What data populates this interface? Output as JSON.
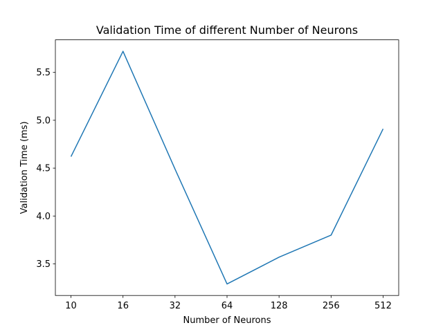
{
  "chart_data": {
    "type": "line",
    "title": "Validation Time of different Number of Neurons",
    "xlabel": "Number of Neurons",
    "ylabel": "Validation Time (ms)",
    "categories": [
      "10",
      "16",
      "32",
      "64",
      "128",
      "256",
      "512"
    ],
    "series": [
      {
        "values": [
          4.62,
          5.72,
          4.49,
          3.29,
          3.57,
          3.8,
          4.91
        ],
        "color": "#1f77b4"
      }
    ],
    "ylim": [
      3.17,
      5.84
    ],
    "yticks": [
      3.5,
      4.0,
      4.5,
      5.0,
      5.5
    ],
    "ytick_labels": [
      "3.5",
      "4.0",
      "4.5",
      "5.0",
      "5.5"
    ],
    "grid": false,
    "legend": false
  }
}
